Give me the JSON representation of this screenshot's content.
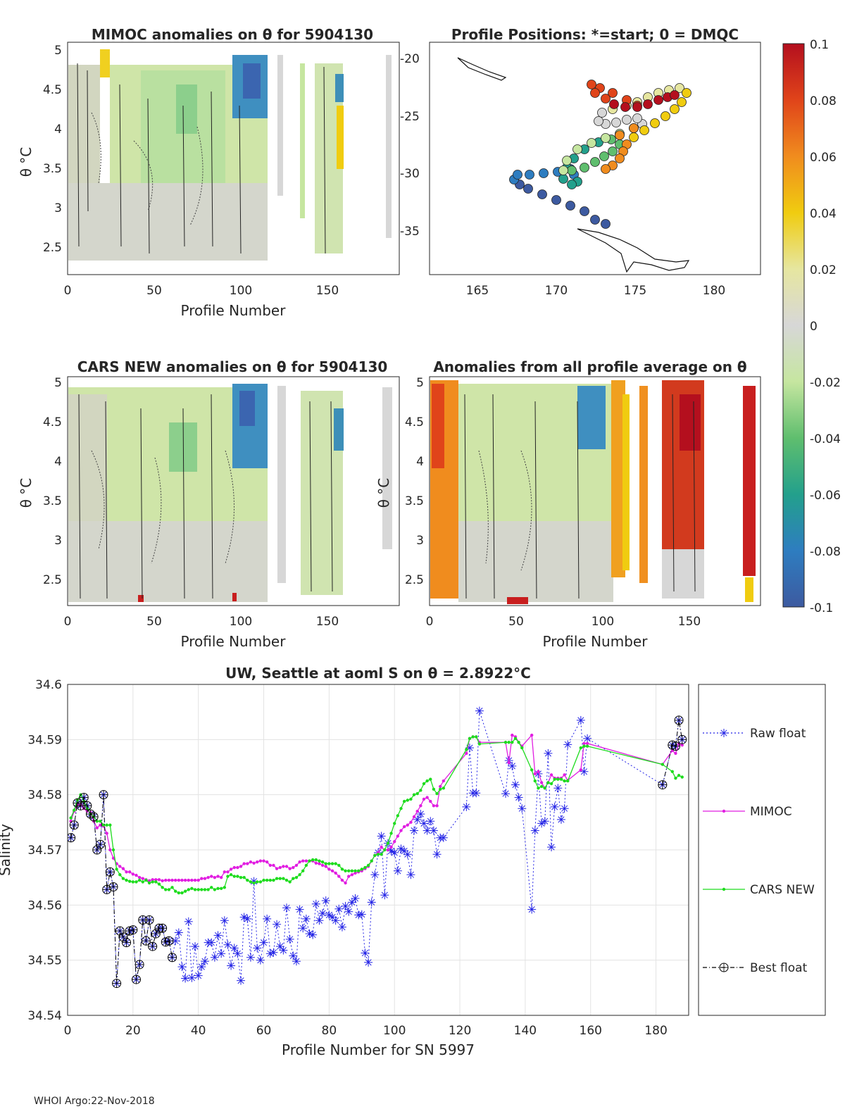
{
  "footer": "WHOI Argo:22-Nov-2018",
  "panels": {
    "mimoc": {
      "title": "MIMOC anomalies on θ  for 5904130",
      "ylabel": "θ °C",
      "xlabel": "Profile Number",
      "yticks": [
        "5",
        "4.5",
        "4",
        "3.5",
        "3",
        "2.5"
      ],
      "xticks": [
        "0",
        "50",
        "100",
        "150"
      ]
    },
    "positions": {
      "title": "Profile Positions: *=start; 0 = DMQC",
      "yticks": [
        "-20",
        "-25",
        "-30",
        "-35"
      ],
      "xticks": [
        "165",
        "170",
        "175",
        "180"
      ]
    },
    "cars": {
      "title": "CARS NEW anomalies on θ for 5904130",
      "ylabel": "θ °C",
      "xlabel": "Profile Number",
      "yticks": [
        "5",
        "4.5",
        "4",
        "3.5",
        "3",
        "2.5"
      ],
      "xticks": [
        "0",
        "50",
        "100",
        "150"
      ]
    },
    "allavg": {
      "title": "Anomalies from all profile average on θ",
      "ylabel": "θ °C",
      "xlabel": "Profile Number",
      "yticks": [
        "5",
        "4.5",
        "4",
        "3.5",
        "3",
        "2.5"
      ],
      "xticks": [
        "0",
        "50",
        "100",
        "150"
      ]
    }
  },
  "colorbar": {
    "ticks": [
      "0.1",
      "0.08",
      "0.06",
      "0.04",
      "0.02",
      "0",
      "-0.02",
      "-0.04",
      "-0.06",
      "-0.08",
      "-0.1"
    ],
    "colors": [
      "#b40f1e",
      "#e0441a",
      "#f08c1e",
      "#f0cc10",
      "#e6e6a0",
      "#d7d7d7",
      "#c6e6a0",
      "#5fbe6e",
      "#23a08c",
      "#2e7dc0",
      "#3d5aa0"
    ]
  },
  "chart_data": {
    "type": "line",
    "title": "UW, Seattle at aoml S on θ = 2.8922°C",
    "xlabel": "Profile Number for SN 5997",
    "ylabel": "Salinity",
    "xlim": [
      0,
      190
    ],
    "ylim": [
      34.54,
      34.6
    ],
    "xticks": [
      "0",
      "20",
      "40",
      "60",
      "80",
      "100",
      "120",
      "140",
      "160",
      "180"
    ],
    "yticks": [
      "34.6",
      "34.59",
      "34.58",
      "34.57",
      "34.56",
      "34.55",
      "34.54"
    ],
    "series": [
      {
        "name": "Raw float",
        "color": "#2323e6",
        "marker": "asterisk",
        "x": [
          1,
          2,
          3,
          4,
          5,
          6,
          7,
          8,
          9,
          10,
          11,
          12,
          13,
          14,
          15,
          16,
          17,
          18,
          19,
          20,
          21,
          22,
          23,
          24,
          25,
          26,
          27,
          28,
          29,
          30,
          31,
          32,
          33,
          34,
          35,
          36,
          37,
          38,
          39,
          40,
          41,
          42,
          43,
          44,
          45,
          46,
          47,
          48,
          49,
          50,
          51,
          52,
          53,
          54,
          55,
          56,
          57,
          58,
          59,
          60,
          61,
          62,
          63,
          64,
          65,
          66,
          67,
          68,
          69,
          70,
          71,
          72,
          73,
          74,
          75,
          76,
          77,
          78,
          79,
          80,
          81,
          82,
          83,
          84,
          85,
          86,
          87,
          88,
          89,
          90,
          91,
          92,
          93,
          94,
          95,
          96,
          97,
          98,
          99,
          100,
          101,
          102,
          103,
          104,
          105,
          106,
          107,
          108,
          109,
          110,
          111,
          112,
          113,
          114,
          115,
          122,
          123,
          124,
          125,
          126,
          134,
          135,
          136,
          137,
          138,
          139,
          142,
          143,
          144,
          145,
          146,
          147,
          148,
          149,
          150,
          151,
          152,
          153,
          157,
          158,
          159,
          182,
          185,
          186,
          187,
          188
        ],
        "values": [
          34.5722,
          34.5745,
          34.5785,
          34.578,
          34.5795,
          34.578,
          34.5765,
          34.576,
          34.57,
          34.571,
          34.58,
          34.5628,
          34.566,
          34.5633,
          34.5458,
          34.5553,
          34.5542,
          34.5532,
          34.5553,
          34.5555,
          34.5465,
          34.5492,
          34.5573,
          34.5535,
          34.5573,
          34.5525,
          34.5548,
          34.5558,
          34.5558,
          34.5533,
          34.5535,
          34.5505,
          34.5535,
          34.555,
          34.5488,
          34.5467,
          34.557,
          34.5468,
          34.5525,
          34.5472,
          34.5488,
          34.5498,
          34.5532,
          34.5532,
          34.5505,
          34.5545,
          34.5512,
          34.5572,
          34.5528,
          34.549,
          34.5522,
          34.5512,
          34.5463,
          34.5578,
          34.5575,
          34.5505,
          34.5643,
          34.5522,
          34.55,
          34.5532,
          34.5575,
          34.5512,
          34.5514,
          34.5565,
          34.5525,
          34.5518,
          34.5595,
          34.5538,
          34.5508,
          34.5498,
          34.5592,
          34.5558,
          34.5575,
          34.5548,
          34.5546,
          34.5602,
          34.5572,
          34.5585,
          34.5608,
          34.5582,
          34.5578,
          34.5572,
          34.5593,
          34.556,
          34.5598,
          34.5588,
          34.5605,
          34.5612,
          34.5582,
          34.5583,
          34.5513,
          34.5496,
          34.5605,
          34.5655,
          34.5695,
          34.5725,
          34.5618,
          34.5712,
          34.5698,
          34.5695,
          34.5662,
          34.5702,
          34.5698,
          34.5692,
          34.5655,
          34.5735,
          34.5755,
          34.5765,
          34.5748,
          34.5735,
          34.5752,
          34.5735,
          34.5692,
          34.5722,
          34.5722,
          34.5778,
          34.5885,
          34.5803,
          34.5803,
          34.5952,
          34.5802,
          34.5862,
          34.5852,
          34.5818,
          34.5795,
          34.5775,
          34.5592,
          34.5735,
          34.5838,
          34.5748,
          34.5752,
          34.5875,
          34.5705,
          34.5778,
          34.5812,
          34.5755,
          34.5775,
          34.5891,
          34.5935,
          34.5842,
          34.5902,
          34.5818,
          34.589,
          34.5888,
          34.5935,
          34.59
        ]
      },
      {
        "name": "MIMOC",
        "color": "#e11ee1",
        "marker": "dot",
        "x": [
          1,
          2,
          3,
          4,
          5,
          6,
          7,
          8,
          9,
          10,
          11,
          12,
          13,
          14,
          15,
          16,
          17,
          18,
          19,
          20,
          21,
          22,
          23,
          24,
          25,
          26,
          27,
          28,
          29,
          30,
          31,
          32,
          33,
          34,
          35,
          36,
          37,
          38,
          39,
          40,
          41,
          42,
          43,
          44,
          45,
          46,
          47,
          48,
          49,
          50,
          51,
          52,
          53,
          54,
          55,
          56,
          57,
          58,
          59,
          60,
          61,
          62,
          63,
          64,
          65,
          66,
          67,
          68,
          69,
          70,
          71,
          72,
          73,
          74,
          75,
          76,
          77,
          78,
          79,
          80,
          81,
          82,
          83,
          84,
          85,
          86,
          87,
          88,
          89,
          90,
          91,
          92,
          93,
          94,
          95,
          96,
          97,
          98,
          99,
          100,
          101,
          102,
          103,
          104,
          105,
          106,
          107,
          108,
          109,
          110,
          111,
          112,
          113,
          114,
          115,
          122,
          123,
          124,
          125,
          126,
          134,
          135,
          136,
          137,
          138,
          139,
          142,
          143,
          144,
          145,
          146,
          147,
          148,
          149,
          150,
          151,
          152,
          153,
          157,
          158,
          159,
          182,
          185,
          186,
          187,
          188
        ],
        "values": [
          34.5752,
          34.577,
          34.5782,
          34.5782,
          34.5775,
          34.577,
          34.5768,
          34.5752,
          34.574,
          34.5745,
          34.5743,
          34.573,
          34.57,
          34.5685,
          34.5675,
          34.567,
          34.5666,
          34.566,
          34.566,
          34.5656,
          34.5654,
          34.565,
          34.5648,
          34.5646,
          34.5644,
          34.5646,
          34.5646,
          34.5646,
          34.5644,
          34.5645,
          34.5645,
          34.5645,
          34.5645,
          34.5645,
          34.5645,
          34.5645,
          34.5645,
          34.5645,
          34.5645,
          34.5645,
          34.5648,
          34.5648,
          34.565,
          34.5652,
          34.565,
          34.5652,
          34.565,
          34.566,
          34.566,
          34.5665,
          34.5668,
          34.5668,
          34.567,
          34.5675,
          34.5675,
          34.5678,
          34.5676,
          34.5678,
          34.568,
          34.568,
          34.5678,
          34.5672,
          34.5672,
          34.5666,
          34.5668,
          34.567,
          34.567,
          34.5666,
          34.5668,
          34.5672,
          34.5678,
          34.568,
          34.568,
          34.568,
          34.568,
          34.5676,
          34.5675,
          34.5672,
          34.567,
          34.5665,
          34.5662,
          34.5658,
          34.5652,
          34.5645,
          34.564,
          34.5652,
          34.5655,
          34.5658,
          34.566,
          34.5662,
          34.5666,
          34.567,
          34.568,
          34.569,
          34.5695,
          34.5705,
          34.57,
          34.57,
          34.5705,
          34.5715,
          34.5725,
          34.5735,
          34.5742,
          34.5745,
          34.575,
          34.576,
          34.577,
          34.578,
          34.5792,
          34.5795,
          34.5788,
          34.578,
          34.578,
          34.5815,
          34.5825,
          34.5875,
          34.5902,
          34.5905,
          34.5905,
          34.5895,
          34.5895,
          34.5858,
          34.5908,
          34.5905,
          34.5895,
          34.5888,
          34.5908,
          34.5838,
          34.5842,
          34.5822,
          34.5812,
          34.5822,
          34.5836,
          34.583,
          34.583,
          34.583,
          34.5836,
          34.5826,
          34.5845,
          34.5893,
          34.5893,
          34.5855,
          34.588,
          34.5875,
          34.5892,
          34.589
        ]
      },
      {
        "name": "CARS NEW",
        "color": "#1edc1e",
        "marker": "dot",
        "x": [
          1,
          2,
          3,
          4,
          5,
          6,
          7,
          8,
          9,
          10,
          11,
          12,
          13,
          14,
          15,
          16,
          17,
          18,
          19,
          20,
          21,
          22,
          23,
          24,
          25,
          26,
          27,
          28,
          29,
          30,
          31,
          32,
          33,
          34,
          35,
          36,
          37,
          38,
          39,
          40,
          41,
          42,
          43,
          44,
          45,
          46,
          47,
          48,
          49,
          50,
          51,
          52,
          53,
          54,
          55,
          56,
          57,
          58,
          59,
          60,
          61,
          62,
          63,
          64,
          65,
          66,
          67,
          68,
          69,
          70,
          71,
          72,
          73,
          74,
          75,
          76,
          77,
          78,
          79,
          80,
          81,
          82,
          83,
          84,
          85,
          86,
          87,
          88,
          89,
          90,
          91,
          92,
          93,
          94,
          95,
          96,
          97,
          98,
          99,
          100,
          101,
          102,
          103,
          104,
          105,
          106,
          107,
          108,
          109,
          110,
          111,
          112,
          113,
          114,
          115,
          122,
          123,
          124,
          125,
          126,
          134,
          135,
          136,
          137,
          138,
          139,
          142,
          143,
          144,
          145,
          146,
          147,
          148,
          149,
          150,
          151,
          152,
          153,
          157,
          158,
          159,
          182,
          185,
          186,
          187,
          188
        ],
        "values": [
          34.5758,
          34.5772,
          34.579,
          34.58,
          34.5788,
          34.5775,
          34.5765,
          34.576,
          34.5752,
          34.5752,
          34.5745,
          34.5745,
          34.5745,
          34.57,
          34.5665,
          34.5655,
          34.5648,
          34.5645,
          34.5643,
          34.5642,
          34.5642,
          34.5645,
          34.5642,
          34.5645,
          34.564,
          34.5642,
          34.5642,
          34.5638,
          34.5632,
          34.5628,
          34.5628,
          34.5632,
          34.5625,
          34.5622,
          34.5622,
          34.5625,
          34.5628,
          34.563,
          34.5628,
          34.5628,
          34.5628,
          34.5628,
          34.5628,
          34.5632,
          34.5628,
          34.563,
          34.563,
          34.5632,
          34.5652,
          34.5655,
          34.5652,
          34.5652,
          34.565,
          34.565,
          34.5645,
          34.5642,
          34.564,
          34.5642,
          34.5642,
          34.5645,
          34.5645,
          34.5645,
          34.5645,
          34.5648,
          34.5648,
          34.5648,
          34.5645,
          34.5642,
          34.5648,
          34.565,
          34.5655,
          34.5662,
          34.5672,
          34.568,
          34.5682,
          34.5682,
          34.568,
          34.5678,
          34.5675,
          34.5675,
          34.5675,
          34.5675,
          34.5672,
          34.5665,
          34.5662,
          34.5662,
          34.5662,
          34.5662,
          34.5662,
          34.5665,
          34.5668,
          34.5672,
          34.568,
          34.569,
          34.5692,
          34.5692,
          34.57,
          34.5712,
          34.573,
          34.5748,
          34.5762,
          34.5775,
          34.5788,
          34.579,
          34.5792,
          34.58,
          34.5802,
          34.5808,
          34.582,
          34.5825,
          34.5828,
          34.581,
          34.5802,
          34.581,
          34.5812,
          34.5882,
          34.5902,
          34.5905,
          34.5905,
          34.5892,
          34.5895,
          34.5895,
          34.5895,
          34.5902,
          34.5895,
          34.5885,
          34.5845,
          34.5825,
          34.5812,
          34.5815,
          34.5812,
          34.5822,
          34.582,
          34.5828,
          34.5828,
          34.5828,
          34.5825,
          34.5825,
          34.5885,
          34.5888,
          34.5888,
          34.5855,
          34.5842,
          34.583,
          34.5835,
          34.5832
        ]
      },
      {
        "name": "Best float",
        "color": "#000000",
        "marker": "circle",
        "x": [
          1,
          2,
          3,
          4,
          5,
          6,
          7,
          8,
          9,
          10,
          11,
          12,
          13,
          14,
          15,
          16,
          17,
          18,
          19,
          20,
          21,
          22,
          23,
          24,
          25,
          26,
          27,
          28,
          29,
          30,
          31,
          32,
          182,
          185,
          186,
          187,
          188
        ],
        "values": [
          34.5722,
          34.5745,
          34.5785,
          34.578,
          34.5795,
          34.578,
          34.5765,
          34.576,
          34.57,
          34.571,
          34.58,
          34.5628,
          34.566,
          34.5633,
          34.5458,
          34.5553,
          34.5542,
          34.5532,
          34.5553,
          34.5555,
          34.5465,
          34.5492,
          34.5573,
          34.5535,
          34.5573,
          34.5525,
          34.5548,
          34.5558,
          34.5558,
          34.5533,
          34.5535,
          34.5505,
          34.5818,
          34.589,
          34.5888,
          34.5935,
          34.59
        ]
      }
    ]
  }
}
